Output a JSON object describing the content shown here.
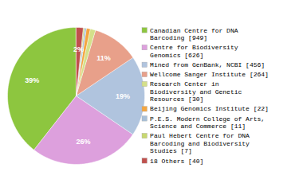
{
  "chart_data": {
    "type": "pie",
    "categories": [
      "Canadian Centre for DNA\nBarcoding [949]",
      "Centre for Biodiversity\nGenomics [626]",
      "Mined from GenBank, NCBI [456]",
      "Wellcome Sanger Institute [264]",
      "Research Center in\nBiodiversity and Genetic\nResources [30]",
      "Beijing Genomics Institute [22]",
      "P.E.S. Modern College of Arts,\nScience and Commerce [11]",
      "Paul Hebert Centre for DNA\nBarcoding and Biodiversity\nStudies [7]",
      "18 Others [40]"
    ],
    "values": [
      39.46,
      26.03,
      18.96,
      10.98,
      1.25,
      0.91,
      0.46,
      0.29,
      1.66
    ],
    "value_labels": [
      "39%",
      "26%",
      "19%",
      "11%",
      null,
      null,
      null,
      null,
      "2%"
    ],
    "colors": [
      "#8dc63f",
      "#dda0dd",
      "#b0c4de",
      "#e8a08a",
      "#d4e08a",
      "#f4a640",
      "#a8c0d8",
      "#c8d870",
      "#c0504d"
    ],
    "data_labels": true,
    "legend": "right"
  }
}
